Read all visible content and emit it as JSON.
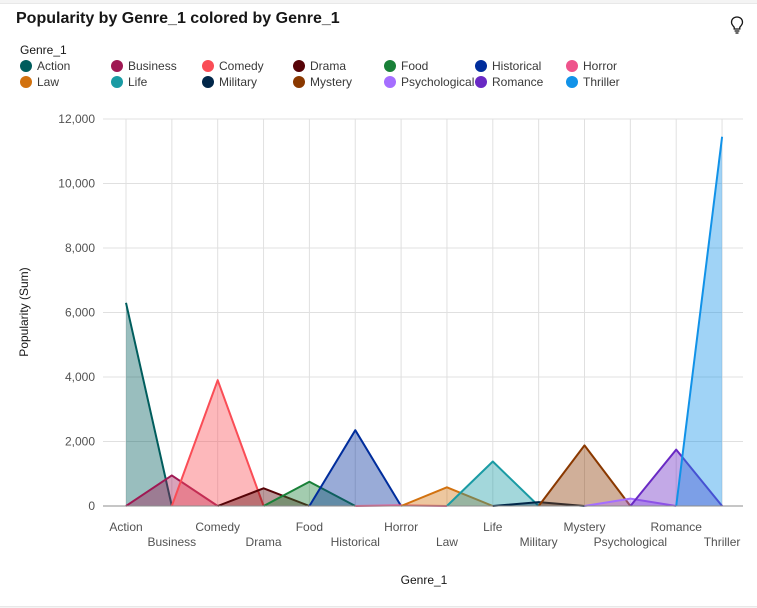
{
  "title": "Popularity by Genre_1 colored by Genre_1",
  "icons": {
    "insight": "lightbulb-icon"
  },
  "legend": {
    "title": "Genre_1",
    "items": [
      {
        "label": "Action",
        "color": "#005d5d"
      },
      {
        "label": "Business",
        "color": "#9f1853"
      },
      {
        "label": "Comedy",
        "color": "#fa4d56"
      },
      {
        "label": "Drama",
        "color": "#570408"
      },
      {
        "label": "Food",
        "color": "#198038"
      },
      {
        "label": "Historical",
        "color": "#002d9c"
      },
      {
        "label": "Horror",
        "color": "#ee538b"
      },
      {
        "label": "Law",
        "color": "#d2720f"
      },
      {
        "label": "Life",
        "color": "#1a9ba4"
      },
      {
        "label": "Military",
        "color": "#012749"
      },
      {
        "label": "Mystery",
        "color": "#8a3800"
      },
      {
        "label": "Psychological",
        "color": "#a56eff"
      },
      {
        "label": "Romance",
        "color": "#6929c4"
      },
      {
        "label": "Thriller",
        "color": "#1192e8"
      }
    ]
  },
  "chart_data": {
    "type": "area",
    "title": "Popularity by Genre_1 colored by Genre_1",
    "xlabel": "Genre_1",
    "ylabel": "Popularity (Sum)",
    "categories": [
      "Action",
      "Business",
      "Comedy",
      "Drama",
      "Food",
      "Historical",
      "Horror",
      "Law",
      "Life",
      "Military",
      "Mystery",
      "Psychological",
      "Romance",
      "Thriller"
    ],
    "ylim": [
      0,
      12000
    ],
    "yticks": [
      "0",
      "2,000",
      "4,000",
      "6,000",
      "8,000",
      "10,000",
      "12,000"
    ],
    "ytick_values": [
      0,
      2000,
      4000,
      6000,
      8000,
      10000,
      12000
    ],
    "grid": true,
    "legend_position": "top",
    "values": [
      6300,
      950,
      3900,
      550,
      750,
      2350,
      20,
      580,
      1380,
      120,
      1880,
      230,
      1750,
      11450
    ]
  }
}
